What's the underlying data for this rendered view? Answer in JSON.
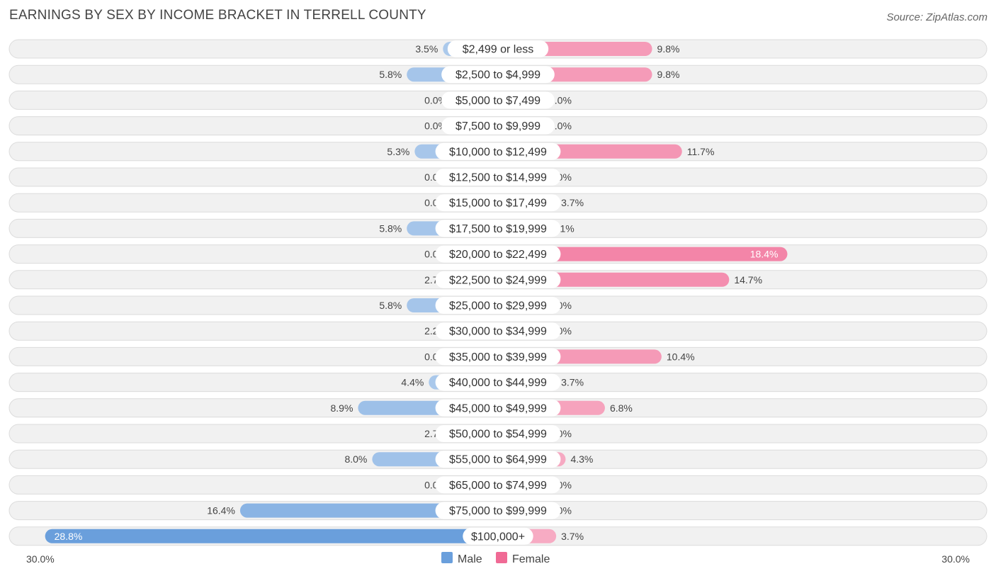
{
  "chart_data": {
    "type": "bar",
    "orientation": "horizontal-diverging",
    "title": "EARNINGS BY SEX BY INCOME BRACKET IN TERRELL COUNTY",
    "source": "Source: ZipAtlas.com",
    "categories": [
      "$2,499 or less",
      "$2,500 to $4,999",
      "$5,000 to $7,499",
      "$7,500 to $9,999",
      "$10,000 to $12,499",
      "$12,500 to $14,999",
      "$15,000 to $17,499",
      "$17,500 to $19,999",
      "$20,000 to $22,499",
      "$22,500 to $24,999",
      "$25,000 to $29,999",
      "$30,000 to $34,999",
      "$35,000 to $39,999",
      "$40,000 to $44,999",
      "$45,000 to $49,999",
      "$50,000 to $54,999",
      "$55,000 to $64,999",
      "$65,000 to $74,999",
      "$75,000 to $99,999",
      "$100,000+"
    ],
    "series": [
      {
        "name": "Male",
        "color": "#6a9fdc",
        "values": [
          3.5,
          5.8,
          0.0,
          0.0,
          5.3,
          0.0,
          0.0,
          5.8,
          0.0,
          2.7,
          5.8,
          2.2,
          0.0,
          4.4,
          8.9,
          2.7,
          8.0,
          0.0,
          16.4,
          28.8
        ],
        "labels": [
          "3.5%",
          "5.8%",
          "0.0%",
          "0.0%",
          "5.3%",
          "0.0%",
          "0.0%",
          "5.8%",
          "0.0%",
          "2.7%",
          "5.8%",
          "2.2%",
          "0.0%",
          "4.4%",
          "8.9%",
          "2.7%",
          "8.0%",
          "0.0%",
          "16.4%",
          "28.8%"
        ]
      },
      {
        "name": "Female",
        "color": "#f06a95",
        "values": [
          9.8,
          9.8,
          0.0,
          0.0,
          11.7,
          0.0,
          3.7,
          3.1,
          18.4,
          14.7,
          0.0,
          0.0,
          10.4,
          3.7,
          6.8,
          0.0,
          4.3,
          0.0,
          0.0,
          3.7
        ],
        "labels": [
          "9.8%",
          "9.8%",
          "0.0%",
          "0.0%",
          "11.7%",
          "0.0%",
          "3.7%",
          "3.1%",
          "18.4%",
          "14.7%",
          "0.0%",
          "0.0%",
          "10.4%",
          "3.7%",
          "6.8%",
          "0.0%",
          "4.3%",
          "0.0%",
          "0.0%",
          "3.7%"
        ]
      }
    ],
    "xlim": [
      -30,
      30
    ],
    "axis_min_label": "30.0%",
    "axis_max_label": "30.0%",
    "legend_position": "bottom-center"
  }
}
